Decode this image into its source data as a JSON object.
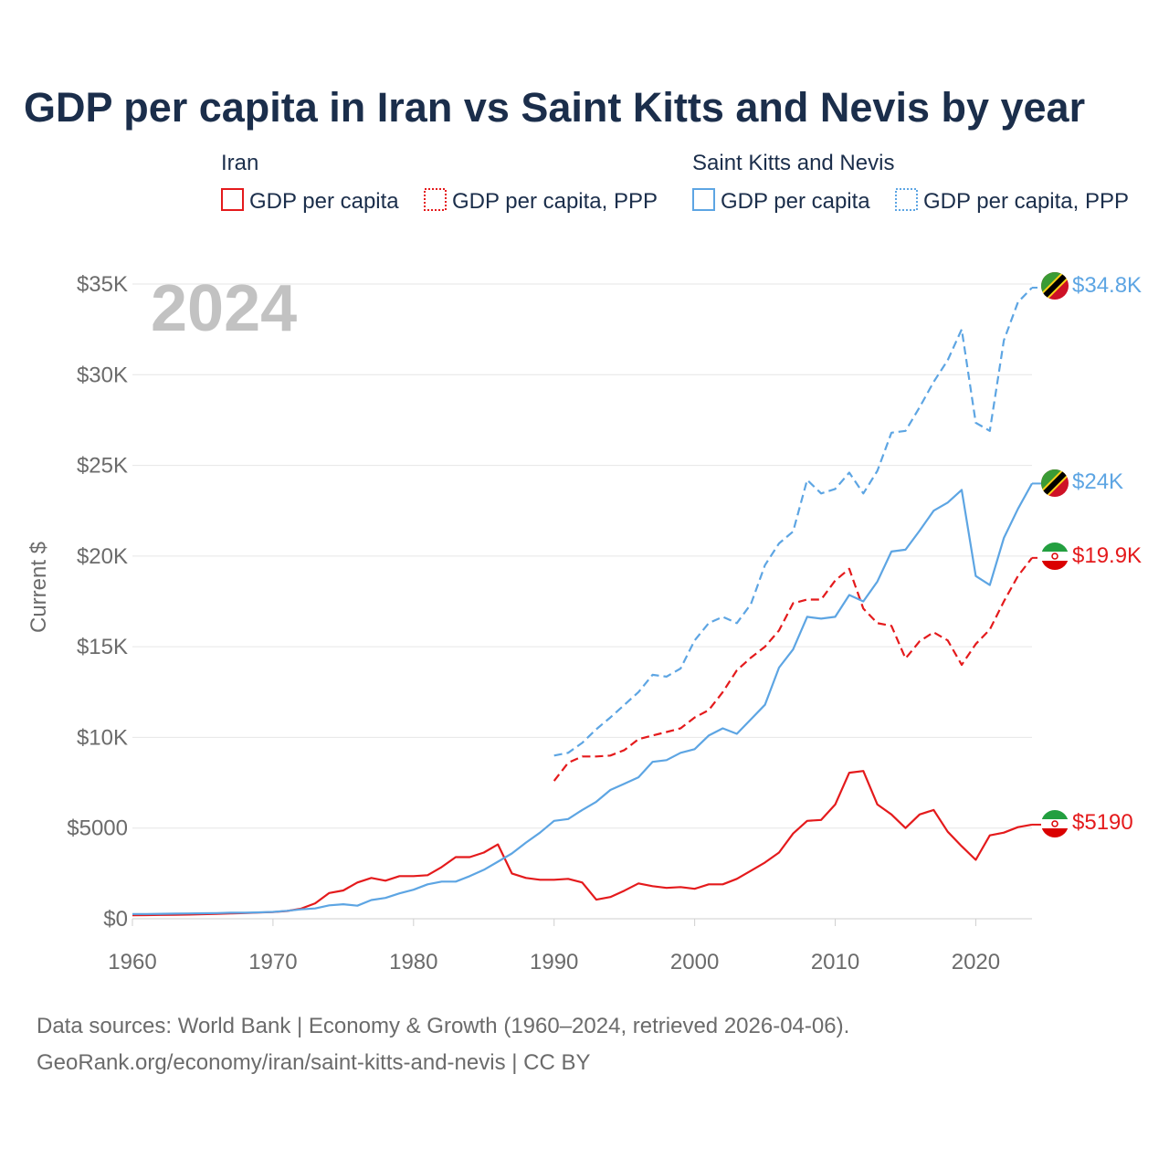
{
  "chart_data": {
    "type": "line",
    "title": "GDP per capita in Iran vs Saint Kitts and Nevis by year",
    "ylabel": "Current $",
    "xlabel": "",
    "xlim": [
      1960,
      2024
    ],
    "ylim": [
      0,
      35000
    ],
    "x_ticks": [
      1960,
      1970,
      1980,
      1990,
      2000,
      2010,
      2020
    ],
    "x_tick_labels": [
      "1960",
      "1970",
      "1980",
      "1990",
      "2000",
      "2010",
      "2020"
    ],
    "y_ticks": [
      0,
      5000,
      10000,
      15000,
      20000,
      25000,
      30000,
      35000
    ],
    "y_tick_labels": [
      "$0",
      "$5000",
      "$10K",
      "$15K",
      "$20K",
      "$25K",
      "$30K",
      "$35K"
    ],
    "grid": true,
    "year_watermark": "2024",
    "legend": {
      "groups": [
        {
          "country": "Iran",
          "items": [
            "GDP per capita",
            "GDP per capita, PPP"
          ]
        },
        {
          "country": "Saint Kitts and Nevis",
          "items": [
            "GDP per capita",
            "GDP per capita, PPP"
          ]
        }
      ]
    },
    "colors": {
      "iran": "#e41a1c",
      "skn": "#5da5e3"
    },
    "series": [
      {
        "name": "Iran GDP per capita",
        "country": "Iran",
        "style": "solid",
        "color": "#e41a1c",
        "end_label": "$5190",
        "x": [
          1960,
          1961,
          1962,
          1963,
          1964,
          1965,
          1966,
          1967,
          1968,
          1969,
          1970,
          1971,
          1972,
          1973,
          1974,
          1975,
          1976,
          1977,
          1978,
          1979,
          1980,
          1981,
          1982,
          1983,
          1984,
          1985,
          1986,
          1987,
          1988,
          1989,
          1990,
          1991,
          1992,
          1993,
          1994,
          1995,
          1996,
          1997,
          1998,
          1999,
          2000,
          2001,
          2002,
          2003,
          2004,
          2005,
          2006,
          2007,
          2008,
          2009,
          2010,
          2011,
          2012,
          2013,
          2014,
          2015,
          2016,
          2017,
          2018,
          2019,
          2020,
          2021,
          2022,
          2023,
          2024
        ],
        "values": [
          190,
          200,
          210,
          220,
          230,
          250,
          270,
          290,
          310,
          340,
          370,
          430,
          560,
          850,
          1420,
          1560,
          2000,
          2250,
          2100,
          2350,
          2350,
          2400,
          2850,
          3400,
          3400,
          3650,
          4100,
          2500,
          2250,
          2150,
          2150,
          2200,
          2000,
          1050,
          1200,
          1550,
          1950,
          1800,
          1700,
          1750,
          1650,
          1900,
          1900,
          2200,
          2650,
          3100,
          3650,
          4700,
          5400,
          5450,
          6300,
          8050,
          8150,
          6300,
          5750,
          5000,
          5750,
          6000,
          4800,
          4000,
          3250,
          4600,
          4750,
          5050,
          5190
        ]
      },
      {
        "name": "Iran GDP per capita, PPP",
        "country": "Iran",
        "style": "dashed",
        "color": "#e41a1c",
        "end_label": "$19.9K",
        "x": [
          1990,
          1991,
          1992,
          1993,
          1994,
          1995,
          1996,
          1997,
          1998,
          1999,
          2000,
          2001,
          2002,
          2003,
          2004,
          2005,
          2006,
          2007,
          2008,
          2009,
          2010,
          2011,
          2012,
          2013,
          2014,
          2015,
          2016,
          2017,
          2018,
          2019,
          2020,
          2021,
          2022,
          2023,
          2024
        ],
        "values": [
          7600,
          8600,
          8950,
          8950,
          9000,
          9300,
          9900,
          10100,
          10300,
          10500,
          11100,
          11500,
          12500,
          13700,
          14400,
          15000,
          15900,
          17400,
          17600,
          17600,
          18650,
          19300,
          17100,
          16300,
          16150,
          14350,
          15300,
          15800,
          15350,
          14000,
          15150,
          15950,
          17500,
          18900,
          19900
        ]
      },
      {
        "name": "Saint Kitts and Nevis GDP per capita",
        "country": "Saint Kitts and Nevis",
        "style": "solid",
        "color": "#5da5e3",
        "end_label": "$24K",
        "x": [
          1960,
          1961,
          1962,
          1963,
          1964,
          1965,
          1966,
          1967,
          1968,
          1969,
          1970,
          1971,
          1972,
          1973,
          1974,
          1975,
          1976,
          1977,
          1978,
          1979,
          1980,
          1981,
          1982,
          1983,
          1984,
          1985,
          1986,
          1987,
          1988,
          1989,
          1990,
          1991,
          1992,
          1993,
          1994,
          1995,
          1996,
          1997,
          1998,
          1999,
          2000,
          2001,
          2002,
          2003,
          2004,
          2005,
          2006,
          2007,
          2008,
          2009,
          2010,
          2011,
          2012,
          2013,
          2014,
          2015,
          2016,
          2017,
          2018,
          2019,
          2020,
          2021,
          2022,
          2023,
          2024
        ],
        "values": [
          260,
          260,
          270,
          280,
          290,
          300,
          310,
          330,
          330,
          350,
          380,
          440,
          520,
          570,
          740,
          800,
          720,
          1030,
          1150,
          1400,
          1600,
          1900,
          2050,
          2050,
          2350,
          2700,
          3150,
          3600,
          4200,
          4750,
          5400,
          5500,
          6000,
          6450,
          7100,
          7450,
          7800,
          8650,
          8750,
          9150,
          9350,
          10100,
          10500,
          10200,
          11000,
          11800,
          13850,
          14850,
          16650,
          16550,
          16650,
          17850,
          17500,
          18600,
          20250,
          20350,
          21400,
          22500,
          22950,
          23650,
          18900,
          18400,
          21000,
          22600,
          24000
        ]
      },
      {
        "name": "Saint Kitts and Nevis GDP per capita, PPP",
        "country": "Saint Kitts and Nevis",
        "style": "dashed",
        "color": "#5da5e3",
        "end_label": "$34.8K",
        "x": [
          1990,
          1991,
          1992,
          1993,
          1994,
          1995,
          1996,
          1997,
          1998,
          1999,
          2000,
          2001,
          2002,
          2003,
          2004,
          2005,
          2006,
          2007,
          2008,
          2009,
          2010,
          2011,
          2012,
          2013,
          2014,
          2015,
          2016,
          2017,
          2018,
          2019,
          2020,
          2021,
          2022,
          2023,
          2024
        ],
        "values": [
          9000,
          9150,
          9700,
          10450,
          11100,
          11800,
          12500,
          13450,
          13350,
          13800,
          15350,
          16300,
          16650,
          16300,
          17350,
          19500,
          20700,
          21350,
          24200,
          23450,
          23700,
          24600,
          23450,
          24700,
          26800,
          26900,
          28200,
          29600,
          30800,
          32500,
          27350,
          26900,
          31900,
          34000,
          34800
        ]
      }
    ]
  },
  "footer": {
    "source_line": "Data sources: World Bank | Economy & Growth (1960–2024, retrieved 2026-04-06).",
    "url_line": "GeoRank.org/economy/iran/saint-kitts-and-nevis | CC BY"
  }
}
